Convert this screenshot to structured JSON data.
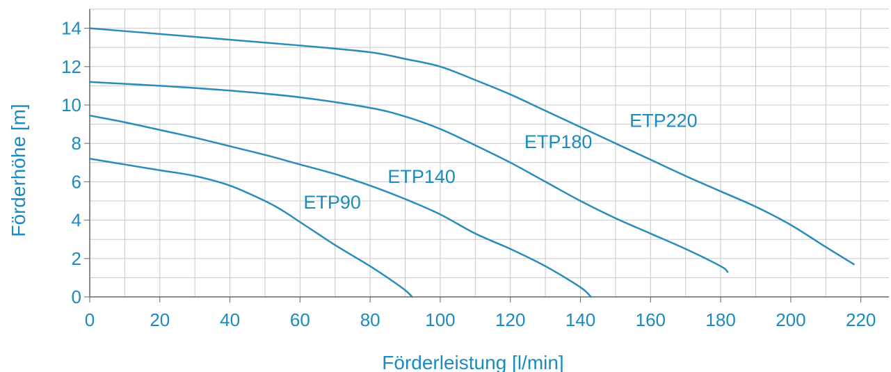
{
  "chart_data": {
    "type": "line",
    "title": "",
    "xlabel": "Förderleistung [l/min]",
    "ylabel": "Förderhöhe [m]",
    "xlim": [
      0,
      228
    ],
    "ylim": [
      0,
      15
    ],
    "x_ticks": [
      0,
      20,
      40,
      60,
      80,
      100,
      120,
      140,
      160,
      180,
      200,
      220
    ],
    "y_ticks": [
      0,
      2,
      4,
      6,
      8,
      10,
      12,
      14
    ],
    "x_minor_step": 10,
    "y_minor_step": 1,
    "grid": true,
    "legend": "none",
    "colors": {
      "text": "#1a8bbf",
      "line": "#2a8cb8",
      "grid": "#c8c8c8",
      "axis": "#666666"
    },
    "series": [
      {
        "name": "ETP90",
        "label_at": [
          61,
          4.6
        ],
        "points": [
          [
            0,
            7.2
          ],
          [
            10,
            6.9
          ],
          [
            20,
            6.6
          ],
          [
            30,
            6.3
          ],
          [
            40,
            5.8
          ],
          [
            50,
            5.0
          ],
          [
            55,
            4.5
          ],
          [
            60,
            3.9
          ],
          [
            65,
            3.3
          ],
          [
            70,
            2.7
          ],
          [
            75,
            2.15
          ],
          [
            80,
            1.6
          ],
          [
            85,
            1.0
          ],
          [
            90,
            0.35
          ],
          [
            92,
            0.0
          ]
        ]
      },
      {
        "name": "ETP140",
        "label_at": [
          85,
          5.95
        ],
        "points": [
          [
            0,
            9.45
          ],
          [
            10,
            9.1
          ],
          [
            20,
            8.7
          ],
          [
            30,
            8.3
          ],
          [
            40,
            7.85
          ],
          [
            50,
            7.4
          ],
          [
            60,
            6.9
          ],
          [
            70,
            6.4
          ],
          [
            80,
            5.8
          ],
          [
            90,
            5.1
          ],
          [
            100,
            4.3
          ],
          [
            110,
            3.3
          ],
          [
            120,
            2.5
          ],
          [
            130,
            1.6
          ],
          [
            140,
            0.5
          ],
          [
            143,
            0.0
          ]
        ]
      },
      {
        "name": "ETP180",
        "label_at": [
          124,
          7.75
        ],
        "points": [
          [
            0,
            11.2
          ],
          [
            20,
            11.0
          ],
          [
            40,
            10.75
          ],
          [
            60,
            10.4
          ],
          [
            80,
            9.85
          ],
          [
            90,
            9.4
          ],
          [
            100,
            8.75
          ],
          [
            110,
            7.9
          ],
          [
            120,
            7.0
          ],
          [
            130,
            6.0
          ],
          [
            140,
            5.0
          ],
          [
            150,
            4.1
          ],
          [
            160,
            3.3
          ],
          [
            170,
            2.5
          ],
          [
            180,
            1.6
          ],
          [
            182,
            1.3
          ]
        ]
      },
      {
        "name": "ETP220",
        "label_at": [
          154,
          8.85
        ],
        "points": [
          [
            0,
            14.0
          ],
          [
            20,
            13.7
          ],
          [
            40,
            13.4
          ],
          [
            60,
            13.1
          ],
          [
            80,
            12.75
          ],
          [
            90,
            12.4
          ],
          [
            100,
            12.0
          ],
          [
            110,
            11.3
          ],
          [
            120,
            10.55
          ],
          [
            130,
            9.7
          ],
          [
            140,
            8.85
          ],
          [
            150,
            8.0
          ],
          [
            160,
            7.15
          ],
          [
            170,
            6.3
          ],
          [
            180,
            5.5
          ],
          [
            190,
            4.7
          ],
          [
            200,
            3.75
          ],
          [
            210,
            2.6
          ],
          [
            218,
            1.7
          ]
        ]
      }
    ]
  }
}
